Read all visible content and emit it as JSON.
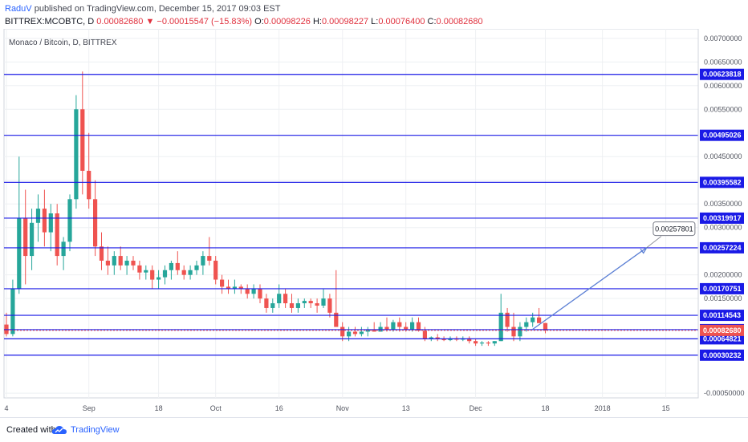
{
  "header": {
    "author": "RaduV",
    "published": "published on TradingView.com, December 15, 2017 09:03 EST",
    "symbol": "BITTREX:MCOBTC, D",
    "price": "0.00082680",
    "change": "▼ −0.00015547 (−15.83%)",
    "o_label": "O:",
    "o_value": "0.00098226",
    "h_label": "H:",
    "h_value": "0.00098227",
    "l_label": "L:",
    "l_value": "0.00076400",
    "c_label": "C:",
    "c_value": "0.00082680"
  },
  "footer": {
    "created_with": "Created with",
    "brand": "TradingView"
  },
  "colors": {
    "up": "#26a69a",
    "down": "#ef5350",
    "level_line": "#1a1ae6",
    "level_label_bg": "#1a1ae6",
    "current_price_bg": "#ef5350",
    "arrow": "#5b7fd4",
    "grid": "#eef0f3"
  },
  "chart_data": {
    "type": "candlestick",
    "title": "Monaco / Bitcoin, D, BITTREX",
    "ylim": [
      -0.0006,
      0.0072
    ],
    "y_ticks": [
      {
        "value": 0.007,
        "label": "0.00700000"
      },
      {
        "value": 0.0065,
        "label": "0.00650000"
      },
      {
        "value": 0.006,
        "label": "0.00600000"
      },
      {
        "value": 0.0055,
        "label": "0.00550000"
      },
      {
        "value": 0.0045,
        "label": "0.00450000"
      },
      {
        "value": 0.004,
        "label": "0.00400000"
      },
      {
        "value": 0.0035,
        "label": "0.00350000"
      },
      {
        "value": 0.003,
        "label": "0.00300000"
      },
      {
        "value": 0.002,
        "label": "0.00200000"
      },
      {
        "value": 0.0015,
        "label": "0.00150000"
      },
      {
        "value": -0.0005,
        "label": "-0.00050000"
      }
    ],
    "x_ticks": [
      {
        "index": 0,
        "label": "4"
      },
      {
        "index": 13,
        "label": "Sep"
      },
      {
        "index": 24,
        "label": "18"
      },
      {
        "index": 33,
        "label": "Oct"
      },
      {
        "index": 43,
        "label": "16"
      },
      {
        "index": 53,
        "label": "Nov"
      },
      {
        "index": 63,
        "label": "13"
      },
      {
        "index": 74,
        "label": "Dec"
      },
      {
        "index": 85,
        "label": "18"
      },
      {
        "index": 94,
        "label": "2018"
      },
      {
        "index": 104,
        "label": "15"
      }
    ],
    "levels": [
      {
        "value": 0.00623818,
        "label": "0.00623818"
      },
      {
        "value": 0.00495026,
        "label": "0.00495026"
      },
      {
        "value": 0.00395582,
        "label": "0.00395582"
      },
      {
        "value": 0.00319917,
        "label": "0.00319917"
      },
      {
        "value": 0.00257224,
        "label": "0.00257224"
      },
      {
        "value": 0.00170751,
        "label": "0.00170751"
      },
      {
        "value": 0.00114543,
        "label": "0.00114543"
      },
      {
        "value": 0.00084278,
        "label": "0.00084278"
      },
      {
        "value": 0.00064821,
        "label": "0.00064821"
      },
      {
        "value": 0.00030232,
        "label": "0.00030232"
      }
    ],
    "current_price": {
      "value": 0.0008268,
      "label": "0.00082680"
    },
    "projection": {
      "from": {
        "index": 83,
        "value": 0.00085
      },
      "to": {
        "index": 101,
        "value": 0.00257801
      },
      "label": "0.00257801"
    },
    "candles": [
      {
        "o": 0.00095,
        "h": 0.0012,
        "l": 0.0007,
        "c": 0.00075
      },
      {
        "o": 0.00075,
        "h": 0.0019,
        "l": 0.0007,
        "c": 0.0017
      },
      {
        "o": 0.0017,
        "h": 0.0045,
        "l": 0.0016,
        "c": 0.0032
      },
      {
        "o": 0.0032,
        "h": 0.0038,
        "l": 0.0018,
        "c": 0.0024
      },
      {
        "o": 0.0024,
        "h": 0.0034,
        "l": 0.0021,
        "c": 0.0031
      },
      {
        "o": 0.0031,
        "h": 0.0037,
        "l": 0.0027,
        "c": 0.0034
      },
      {
        "o": 0.0034,
        "h": 0.0038,
        "l": 0.0026,
        "c": 0.0029
      },
      {
        "o": 0.0029,
        "h": 0.0035,
        "l": 0.0025,
        "c": 0.0033
      },
      {
        "o": 0.0033,
        "h": 0.0035,
        "l": 0.0022,
        "c": 0.0024
      },
      {
        "o": 0.0024,
        "h": 0.0028,
        "l": 0.0021,
        "c": 0.0027
      },
      {
        "o": 0.0027,
        "h": 0.0037,
        "l": 0.0025,
        "c": 0.0036
      },
      {
        "o": 0.0036,
        "h": 0.0058,
        "l": 0.0034,
        "c": 0.0055
      },
      {
        "o": 0.0055,
        "h": 0.0063,
        "l": 0.0037,
        "c": 0.0042
      },
      {
        "o": 0.0042,
        "h": 0.005,
        "l": 0.0034,
        "c": 0.0036
      },
      {
        "o": 0.0036,
        "h": 0.004,
        "l": 0.0024,
        "c": 0.0026
      },
      {
        "o": 0.0026,
        "h": 0.0029,
        "l": 0.0021,
        "c": 0.0023
      },
      {
        "o": 0.0023,
        "h": 0.0026,
        "l": 0.002,
        "c": 0.0022
      },
      {
        "o": 0.0022,
        "h": 0.0025,
        "l": 0.002,
        "c": 0.0024
      },
      {
        "o": 0.0024,
        "h": 0.0026,
        "l": 0.0021,
        "c": 0.0022
      },
      {
        "o": 0.0022,
        "h": 0.0024,
        "l": 0.002,
        "c": 0.0023
      },
      {
        "o": 0.0023,
        "h": 0.0024,
        "l": 0.0021,
        "c": 0.0022
      },
      {
        "o": 0.0022,
        "h": 0.0023,
        "l": 0.0019,
        "c": 0.00205
      },
      {
        "o": 0.00205,
        "h": 0.0022,
        "l": 0.0019,
        "c": 0.0021
      },
      {
        "o": 0.0021,
        "h": 0.0022,
        "l": 0.0017,
        "c": 0.0019
      },
      {
        "o": 0.0019,
        "h": 0.0021,
        "l": 0.0017,
        "c": 0.00195
      },
      {
        "o": 0.00195,
        "h": 0.0022,
        "l": 0.0018,
        "c": 0.0021
      },
      {
        "o": 0.0021,
        "h": 0.0023,
        "l": 0.0019,
        "c": 0.00225
      },
      {
        "o": 0.00225,
        "h": 0.0025,
        "l": 0.002,
        "c": 0.0021
      },
      {
        "o": 0.0021,
        "h": 0.0022,
        "l": 0.0019,
        "c": 0.002
      },
      {
        "o": 0.002,
        "h": 0.0022,
        "l": 0.0019,
        "c": 0.0021
      },
      {
        "o": 0.0021,
        "h": 0.0023,
        "l": 0.002,
        "c": 0.0022
      },
      {
        "o": 0.0022,
        "h": 0.0025,
        "l": 0.002,
        "c": 0.0024
      },
      {
        "o": 0.0024,
        "h": 0.0028,
        "l": 0.0022,
        "c": 0.0023
      },
      {
        "o": 0.0023,
        "h": 0.0024,
        "l": 0.0018,
        "c": 0.0019
      },
      {
        "o": 0.0019,
        "h": 0.002,
        "l": 0.0016,
        "c": 0.00175
      },
      {
        "o": 0.00175,
        "h": 0.0019,
        "l": 0.0016,
        "c": 0.0017
      },
      {
        "o": 0.0017,
        "h": 0.0019,
        "l": 0.0016,
        "c": 0.00175
      },
      {
        "o": 0.00175,
        "h": 0.0018,
        "l": 0.0016,
        "c": 0.0017
      },
      {
        "o": 0.0017,
        "h": 0.0018,
        "l": 0.0015,
        "c": 0.0016
      },
      {
        "o": 0.0016,
        "h": 0.0018,
        "l": 0.0015,
        "c": 0.0017
      },
      {
        "o": 0.0017,
        "h": 0.0018,
        "l": 0.0014,
        "c": 0.0015
      },
      {
        "o": 0.0015,
        "h": 0.0016,
        "l": 0.0012,
        "c": 0.0013
      },
      {
        "o": 0.0013,
        "h": 0.0015,
        "l": 0.0012,
        "c": 0.0014
      },
      {
        "o": 0.0014,
        "h": 0.0018,
        "l": 0.0013,
        "c": 0.0016
      },
      {
        "o": 0.0016,
        "h": 0.0017,
        "l": 0.0013,
        "c": 0.0014
      },
      {
        "o": 0.0014,
        "h": 0.0016,
        "l": 0.0012,
        "c": 0.0013
      },
      {
        "o": 0.0013,
        "h": 0.0015,
        "l": 0.0012,
        "c": 0.0014
      },
      {
        "o": 0.0014,
        "h": 0.0015,
        "l": 0.0013,
        "c": 0.00145
      },
      {
        "o": 0.00145,
        "h": 0.0015,
        "l": 0.0013,
        "c": 0.0014
      },
      {
        "o": 0.0014,
        "h": 0.0015,
        "l": 0.0012,
        "c": 0.00135
      },
      {
        "o": 0.00135,
        "h": 0.0017,
        "l": 0.0013,
        "c": 0.0015
      },
      {
        "o": 0.0015,
        "h": 0.0016,
        "l": 0.0011,
        "c": 0.0012
      },
      {
        "o": 0.0012,
        "h": 0.0021,
        "l": 0.0009,
        "c": 0.0009
      },
      {
        "o": 0.0009,
        "h": 0.001,
        "l": 0.0006,
        "c": 0.0007
      },
      {
        "o": 0.0007,
        "h": 0.0009,
        "l": 0.0006,
        "c": 0.0008
      },
      {
        "o": 0.0008,
        "h": 0.0009,
        "l": 0.0007,
        "c": 0.00075
      },
      {
        "o": 0.00075,
        "h": 0.0009,
        "l": 0.0007,
        "c": 0.0008
      },
      {
        "o": 0.0008,
        "h": 0.0009,
        "l": 0.0007,
        "c": 0.00085
      },
      {
        "o": 0.00085,
        "h": 0.001,
        "l": 0.0008,
        "c": 0.0008
      },
      {
        "o": 0.0008,
        "h": 0.001,
        "l": 0.0008,
        "c": 0.0009
      },
      {
        "o": 0.0009,
        "h": 0.0011,
        "l": 0.0008,
        "c": 0.00085
      },
      {
        "o": 0.00085,
        "h": 0.00105,
        "l": 0.0008,
        "c": 0.001
      },
      {
        "o": 0.001,
        "h": 0.0011,
        "l": 0.0008,
        "c": 0.0009
      },
      {
        "o": 0.0009,
        "h": 0.001,
        "l": 0.0008,
        "c": 0.00085
      },
      {
        "o": 0.00085,
        "h": 0.0011,
        "l": 0.0008,
        "c": 0.001
      },
      {
        "o": 0.001,
        "h": 0.0011,
        "l": 0.0008,
        "c": 0.00082
      },
      {
        "o": 0.00082,
        "h": 0.0009,
        "l": 0.0006,
        "c": 0.00065
      },
      {
        "o": 0.00065,
        "h": 0.0007,
        "l": 0.0006,
        "c": 0.00068
      },
      {
        "o": 0.00068,
        "h": 0.00075,
        "l": 0.0006,
        "c": 0.00065
      },
      {
        "o": 0.00065,
        "h": 0.0007,
        "l": 0.0006,
        "c": 0.00062
      },
      {
        "o": 0.00062,
        "h": 0.0007,
        "l": 0.0006,
        "c": 0.00066
      },
      {
        "o": 0.00066,
        "h": 0.0007,
        "l": 0.0006,
        "c": 0.00063
      },
      {
        "o": 0.00063,
        "h": 0.0007,
        "l": 0.0006,
        "c": 0.00066
      },
      {
        "o": 0.00066,
        "h": 0.0007,
        "l": 0.00055,
        "c": 0.0006
      },
      {
        "o": 0.0006,
        "h": 0.00065,
        "l": 0.0005,
        "c": 0.00055
      },
      {
        "o": 0.00055,
        "h": 0.0006,
        "l": 0.0005,
        "c": 0.00057
      },
      {
        "o": 0.00057,
        "h": 0.0006,
        "l": 0.0005,
        "c": 0.00055
      },
      {
        "o": 0.00055,
        "h": 0.0006,
        "l": 0.0005,
        "c": 0.0006
      },
      {
        "o": 0.0006,
        "h": 0.0016,
        "l": 0.0006,
        "c": 0.0012
      },
      {
        "o": 0.0012,
        "h": 0.0013,
        "l": 0.0008,
        "c": 0.0009
      },
      {
        "o": 0.0009,
        "h": 0.0012,
        "l": 0.0006,
        "c": 0.0007
      },
      {
        "o": 0.0007,
        "h": 0.001,
        "l": 0.0006,
        "c": 0.0009
      },
      {
        "o": 0.0009,
        "h": 0.0011,
        "l": 0.0008,
        "c": 0.001
      },
      {
        "o": 0.001,
        "h": 0.0012,
        "l": 0.0009,
        "c": 0.0011
      },
      {
        "o": 0.0011,
        "h": 0.0013,
        "l": 0.001,
        "c": 0.00098
      },
      {
        "o": 0.00098226,
        "h": 0.00098227,
        "l": 0.000764,
        "c": 0.0008268
      }
    ]
  }
}
